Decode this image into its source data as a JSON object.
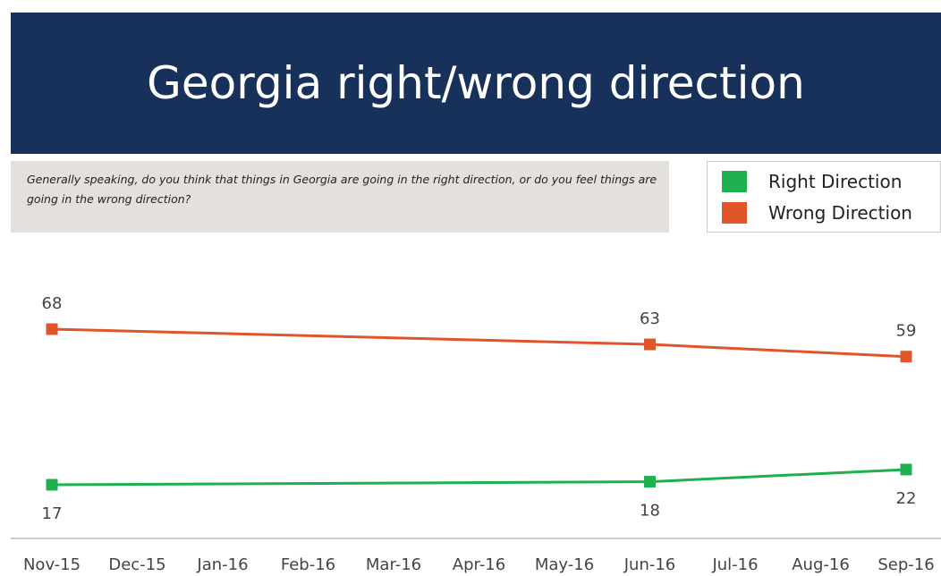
{
  "chart_data": {
    "type": "line",
    "title": "Georgia right/wrong direction",
    "subtitle": "Generally speaking, do you think that things in Georgia are going in the right direction, or do you feel things are going in the wrong direction?",
    "categories": [
      "Nov-15",
      "Dec-15",
      "Jan-16",
      "Feb-16",
      "Mar-16",
      "Apr-16",
      "May-16",
      "Jun-16",
      "Jul-16",
      "Aug-16",
      "Sep-16"
    ],
    "series": [
      {
        "name": "Right Direction",
        "color": "#1fb14f",
        "values": [
          17,
          null,
          null,
          null,
          null,
          null,
          null,
          18,
          null,
          null,
          22
        ]
      },
      {
        "name": "Wrong Direction",
        "color": "#e0552a",
        "values": [
          68,
          null,
          null,
          null,
          null,
          null,
          null,
          63,
          null,
          null,
          59
        ]
      }
    ]
  }
}
